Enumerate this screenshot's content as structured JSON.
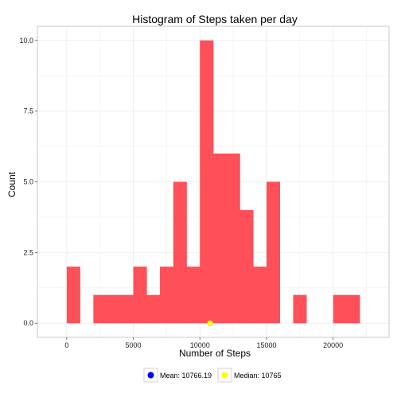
{
  "chart_data": {
    "type": "bar",
    "title": "Histogram of Steps taken per day",
    "xlabel": "Number of Steps",
    "ylabel": "Count",
    "bin_width": 1000,
    "bins": [
      {
        "start": 0,
        "end": 1000,
        "count": 2
      },
      {
        "start": 1000,
        "end": 2000,
        "count": 0
      },
      {
        "start": 2000,
        "end": 3000,
        "count": 1
      },
      {
        "start": 3000,
        "end": 4000,
        "count": 1
      },
      {
        "start": 4000,
        "end": 5000,
        "count": 1
      },
      {
        "start": 5000,
        "end": 6000,
        "count": 2
      },
      {
        "start": 6000,
        "end": 7000,
        "count": 1
      },
      {
        "start": 7000,
        "end": 8000,
        "count": 2
      },
      {
        "start": 8000,
        "end": 9000,
        "count": 5
      },
      {
        "start": 9000,
        "end": 10000,
        "count": 2
      },
      {
        "start": 10000,
        "end": 11000,
        "count": 10
      },
      {
        "start": 11000,
        "end": 12000,
        "count": 6
      },
      {
        "start": 12000,
        "end": 13000,
        "count": 6
      },
      {
        "start": 13000,
        "end": 14000,
        "count": 4
      },
      {
        "start": 14000,
        "end": 15000,
        "count": 2
      },
      {
        "start": 15000,
        "end": 16000,
        "count": 5
      },
      {
        "start": 16000,
        "end": 17000,
        "count": 0
      },
      {
        "start": 17000,
        "end": 18000,
        "count": 1
      },
      {
        "start": 18000,
        "end": 19000,
        "count": 0
      },
      {
        "start": 19000,
        "end": 20000,
        "count": 0
      },
      {
        "start": 20000,
        "end": 21000,
        "count": 1
      },
      {
        "start": 21000,
        "end": 22000,
        "count": 1
      }
    ],
    "xlim": [
      -2200,
      24200
    ],
    "ylim": [
      -0.5,
      10.5
    ],
    "x_ticks": [
      0,
      5000,
      10000,
      15000,
      20000
    ],
    "x_tick_labels": [
      "0",
      "5000",
      "10000",
      "15000",
      "20000"
    ],
    "y_ticks": [
      0,
      2.5,
      5,
      7.5,
      10
    ],
    "y_tick_labels": [
      "0.0",
      "2.5",
      "5.0",
      "7.5",
      "10.0"
    ],
    "grid": true,
    "markers": [
      {
        "label": "Mean: 10766.19",
        "x": 10766.19,
        "y": 0,
        "color": "#0000ff"
      },
      {
        "label": "Median: 10765",
        "x": 10765,
        "y": 0,
        "color": "#ffff00"
      }
    ],
    "legend_position": "bottom",
    "colors": {
      "bar": "#ff4f58",
      "grid": "#eeeeee",
      "panel_border": "#c8c8c8"
    }
  }
}
